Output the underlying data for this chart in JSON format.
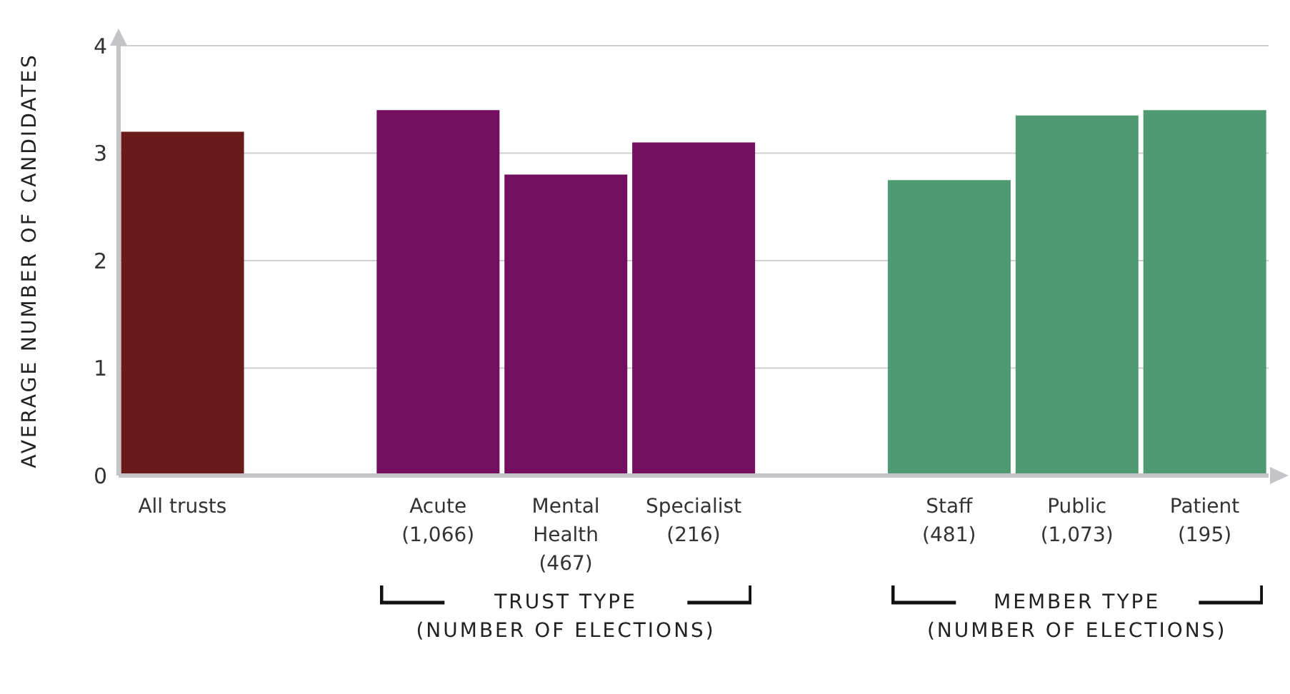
{
  "chart_data": {
    "type": "bar",
    "ylabel": "AVERAGE NUMBER OF CANDIDATES",
    "categories": [
      "All trusts",
      null,
      "Acute\n(1,066)",
      "Mental\nHealth\n(467)",
      "Specialist\n(216)",
      null,
      "Staff\n(481)",
      "Public\n(1,073)",
      "Patient\n(195)"
    ],
    "values": [
      3.2,
      null,
      3.4,
      2.8,
      3.1,
      null,
      2.75,
      3.35,
      3.4
    ],
    "colors": [
      "#6b1a1a",
      null,
      "#730f5e",
      "#730f5e",
      "#730f5e",
      null,
      "#4f9a72",
      "#4f9a72",
      "#4f9a72"
    ],
    "ylim": [
      0,
      4
    ],
    "yticks": [
      0,
      1,
      2,
      3,
      4
    ],
    "grid": "y",
    "legend": false,
    "annotations": [
      "TRUST TYPE\n(NUMBER OF ELECTIONS)",
      "MEMBER TYPE\n(NUMBER OF ELECTIONS)"
    ]
  }
}
